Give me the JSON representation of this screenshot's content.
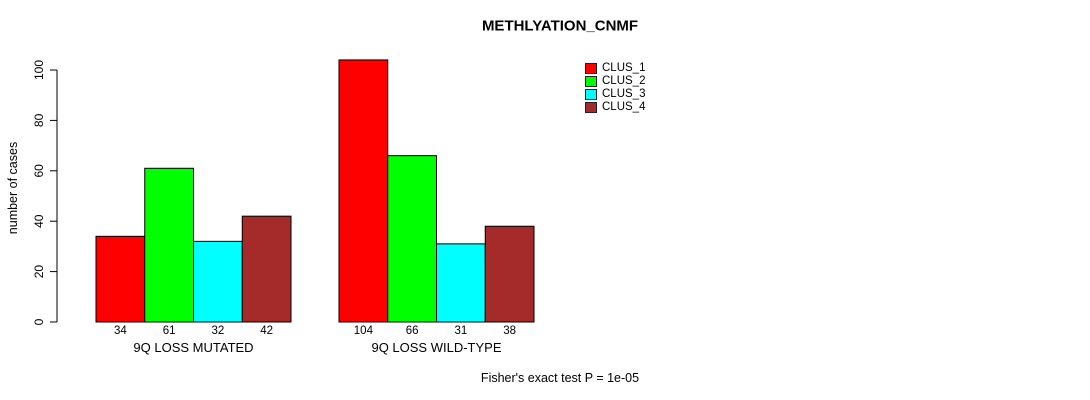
{
  "chart_data": {
    "type": "bar",
    "title": "METHLYATION_CNMF",
    "xlabel": "",
    "ylabel": "number of cases",
    "ylim": [
      0,
      100
    ],
    "yticks": [
      0,
      20,
      40,
      60,
      80,
      100
    ],
    "grid": false,
    "legend_position": "top-right",
    "categories": [
      "9Q LOSS MUTATED",
      "9Q LOSS WILD-TYPE"
    ],
    "series": [
      {
        "name": "CLUS_1",
        "color": "#ff0000",
        "values": [
          34,
          104
        ]
      },
      {
        "name": "CLUS_2",
        "color": "#00ff00",
        "values": [
          61,
          66
        ]
      },
      {
        "name": "CLUS_3",
        "color": "#00ffff",
        "values": [
          32,
          31
        ]
      },
      {
        "name": "CLUS_4",
        "color": "#a52a2a",
        "values": [
          42,
          38
        ]
      }
    ],
    "bar_value_labels": [
      [
        "34",
        "61",
        "32",
        "42"
      ],
      [
        "104",
        "66",
        "31",
        "38"
      ]
    ],
    "annotation": "Fisher's exact test P = 1e-05"
  },
  "colors": {
    "background": "#ffffff",
    "axis": "#000000",
    "bar_border": "#000000",
    "text": "#000000"
  }
}
